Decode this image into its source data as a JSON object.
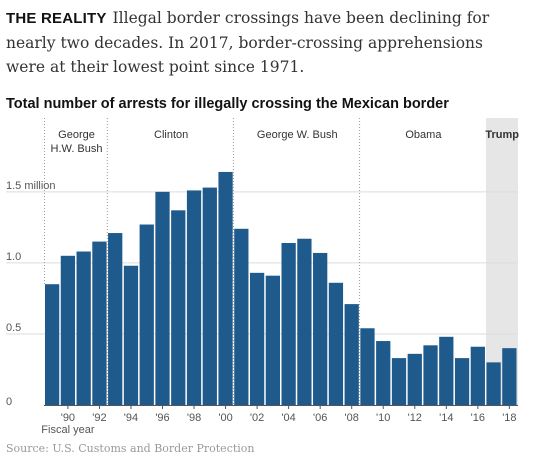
{
  "intro": {
    "lead": "THE REALITY",
    "text": "Illegal border crossings have been declining for nearly two decades. In 2017, border-crossing apprehensions were at their lowest point since 1971."
  },
  "chart_data": {
    "type": "bar",
    "title": "Total number of arrests for illegally crossing the Mexican border",
    "xlabel": "Fiscal year",
    "ylabel": "",
    "ylim": [
      0,
      1.9
    ],
    "ylim_unit": "million",
    "categories": [
      "1989",
      "1990",
      "1991",
      "1992",
      "1993",
      "1994",
      "1995",
      "1996",
      "1997",
      "1998",
      "1999",
      "2000",
      "2001",
      "2002",
      "2003",
      "2004",
      "2005",
      "2006",
      "2007",
      "2008",
      "2009",
      "2010",
      "2011",
      "2012",
      "2013",
      "2014",
      "2015",
      "2016",
      "2017",
      "2018"
    ],
    "values": [
      0.85,
      1.05,
      1.08,
      1.15,
      1.21,
      0.98,
      1.27,
      1.5,
      1.37,
      1.51,
      1.53,
      1.64,
      1.24,
      0.93,
      0.91,
      1.14,
      1.17,
      1.07,
      0.86,
      0.71,
      0.54,
      0.45,
      0.33,
      0.36,
      0.42,
      0.48,
      0.33,
      0.41,
      0.3,
      0.4
    ],
    "x_ticks": [
      {
        "year": 1990,
        "label": "'90"
      },
      {
        "year": 1992,
        "label": "'92"
      },
      {
        "year": 1994,
        "label": "'94"
      },
      {
        "year": 1996,
        "label": "'96"
      },
      {
        "year": 1998,
        "label": "'98"
      },
      {
        "year": 2000,
        "label": "'00"
      },
      {
        "year": 2002,
        "label": "'02"
      },
      {
        "year": 2004,
        "label": "'04"
      },
      {
        "year": 2006,
        "label": "'06"
      },
      {
        "year": 2008,
        "label": "'08"
      },
      {
        "year": 2010,
        "label": "'10"
      },
      {
        "year": 2012,
        "label": "'12"
      },
      {
        "year": 2014,
        "label": "'14"
      },
      {
        "year": 2016,
        "label": "'16"
      },
      {
        "year": 2018,
        "label": "'18"
      }
    ],
    "y_ticks": [
      {
        "value": 0,
        "label": "0"
      },
      {
        "value": 0.5,
        "label": "0.5"
      },
      {
        "value": 1.0,
        "label": "1.0"
      },
      {
        "value": 1.5,
        "label": "1.5 million"
      }
    ],
    "grid": true,
    "bar_color": "#1f5a8c",
    "highlight_color": "#e6e6e6",
    "presidencies": [
      {
        "name": "George H.W. Bush",
        "lines": [
          "George",
          "H.W. Bush"
        ],
        "start": 1989,
        "end": 1992,
        "highlight": false,
        "bold": false
      },
      {
        "name": "Clinton",
        "lines": [
          "Clinton"
        ],
        "start": 1993,
        "end": 2000,
        "highlight": false,
        "bold": false
      },
      {
        "name": "George W. Bush",
        "lines": [
          "George W. Bush"
        ],
        "start": 2001,
        "end": 2008,
        "highlight": false,
        "bold": false
      },
      {
        "name": "Obama",
        "lines": [
          "Obama"
        ],
        "start": 2009,
        "end": 2016,
        "highlight": false,
        "bold": false
      },
      {
        "name": "Trump",
        "lines": [
          "Trump"
        ],
        "start": 2017,
        "end": 2018,
        "highlight": true,
        "bold": true
      }
    ]
  },
  "source": "Source: U.S. Customs and Border Protection"
}
